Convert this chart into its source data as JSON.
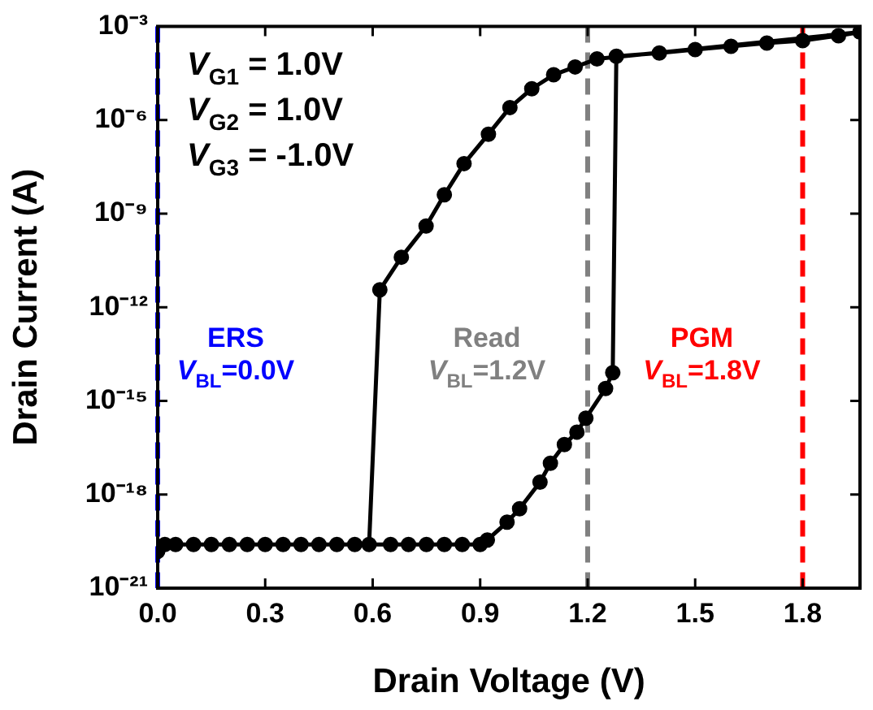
{
  "chart_data": {
    "type": "line",
    "xlabel": "Drain Voltage (V)",
    "ylabel": "Drain Current (A)",
    "log": "y",
    "marker": "circle",
    "line_style": "solid",
    "grid": false,
    "legend": false,
    "xlim": [
      0,
      1.96
    ],
    "ylim": [
      1e-21,
      0.001
    ],
    "xticks": [
      {
        "value": 0,
        "label": "0.0"
      },
      {
        "value": 0.3,
        "label": "0.3"
      },
      {
        "value": 0.6,
        "label": "0.6"
      },
      {
        "value": 0.9,
        "label": "0.9"
      },
      {
        "value": 1.2,
        "label": "1.2"
      },
      {
        "value": 1.5,
        "label": "1.5"
      },
      {
        "value": 1.8,
        "label": "1.8"
      }
    ],
    "yticks": [
      {
        "value": 1e-21,
        "label": "10⁻²¹"
      },
      {
        "value": 1e-18,
        "label": "10⁻¹⁸"
      },
      {
        "value": 1e-15,
        "label": "10⁻¹⁵"
      },
      {
        "value": 1e-12,
        "label": "10⁻¹²"
      },
      {
        "value": 1e-09,
        "label": "10⁻⁹"
      },
      {
        "value": 1e-06,
        "label": "10⁻⁶"
      },
      {
        "value": 0.001,
        "label": "10⁻³"
      }
    ],
    "series": [
      {
        "color": "#000000",
        "x": [
          0,
          0.02,
          0.05,
          0.1,
          0.15,
          0.2,
          0.25,
          0.3,
          0.35,
          0.4,
          0.45,
          0.5,
          0.55,
          0.65,
          0.7,
          0.75,
          0.8,
          0.85,
          0.9,
          0.92,
          0.975,
          1.01,
          1.067,
          1.096,
          1.135,
          1.17,
          1.195,
          1.25,
          1.27,
          1.28,
          1.4,
          1.5,
          1.6,
          1.7,
          1.8,
          1.9,
          1.96,
          1.226,
          1.165,
          1.105,
          1.044,
          0.983,
          0.923,
          0.855,
          0.8,
          0.749,
          0.68,
          0.62,
          0.59
        ],
        "values": [
          1.5e-20,
          2.5e-20,
          2.5e-20,
          2.5e-20,
          2.5e-20,
          2.5e-20,
          2.5e-20,
          2.5e-20,
          2.5e-20,
          2.5e-20,
          2.5e-20,
          2.5e-20,
          2.5e-20,
          2.5e-20,
          2.5e-20,
          2.5e-20,
          2.5e-20,
          2.5e-20,
          2.5e-20,
          3.5e-20,
          1.3e-19,
          3.5e-19,
          2.5e-18,
          1e-17,
          4e-17,
          1e-16,
          2.8e-16,
          2.5e-15,
          8e-15,
          0.00011,
          0.00014,
          0.00018,
          0.00023,
          0.00029,
          0.00035,
          0.0005,
          0.00065,
          9e-05,
          5e-05,
          2.8e-05,
          1e-05,
          2.5e-06,
          3.5e-07,
          4e-08,
          4e-09,
          4e-10,
          4e-11,
          3.6e-12,
          2.5e-20
        ]
      }
    ],
    "ref_lines": [
      {
        "axis": "x",
        "value": 0,
        "label": "ERS\nV$_{BL}$=0.0V",
        "color": "#0000ff",
        "line_style": "dashed"
      },
      {
        "axis": "x",
        "value": 1.2,
        "label": "Read\nV$_{BL}$=1.2V",
        "color": "#808080",
        "line_style": "dashed"
      },
      {
        "axis": "x",
        "value": 1.8,
        "label": "PGM\nV$_{BL}$=1.8V",
        "color": "#ff0000",
        "line_style": "dashed"
      }
    ],
    "annotations": [
      "V$_{G1}$ = 1.0V",
      "V$_{G2}$ = 1.0V",
      "V$_{G3}$ = -1.0V"
    ]
  }
}
